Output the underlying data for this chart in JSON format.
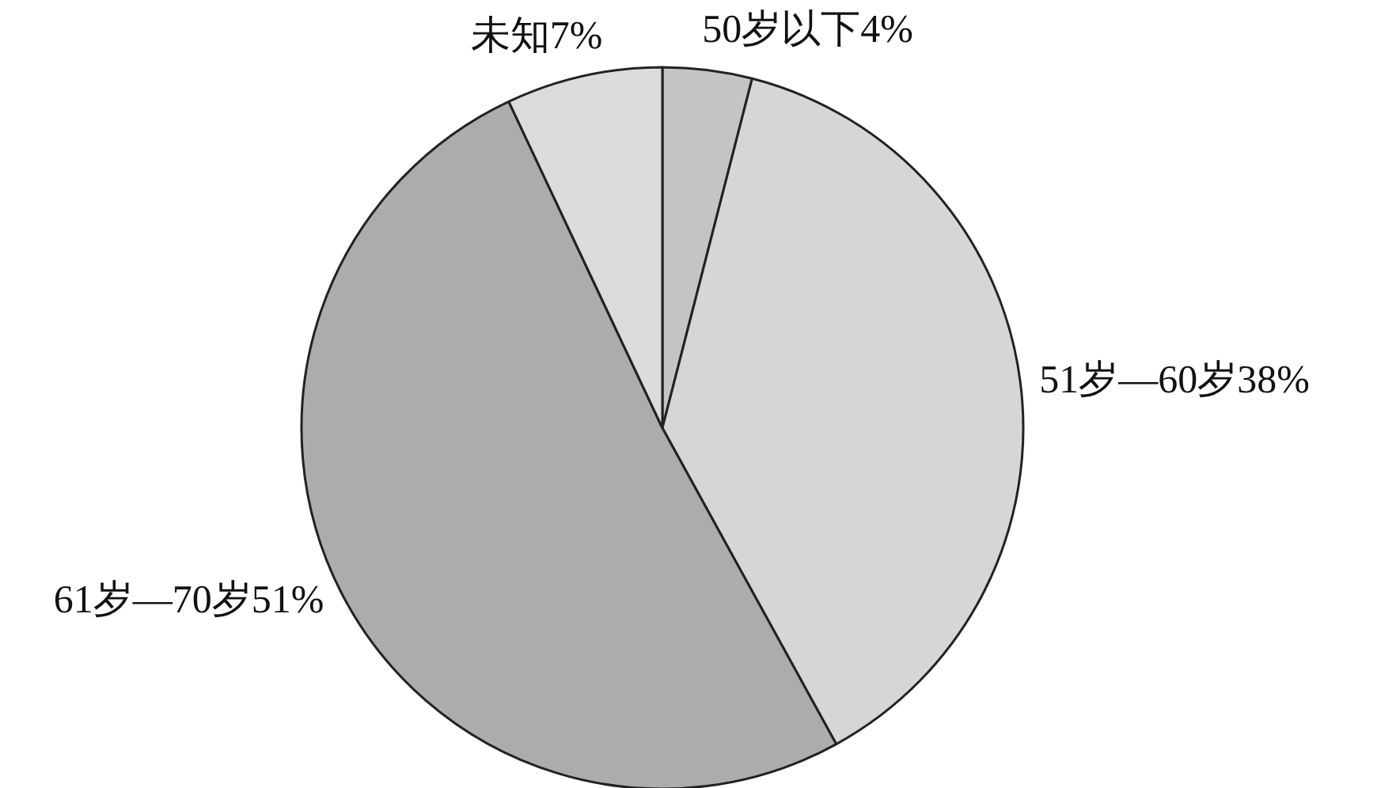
{
  "chart_data": {
    "type": "pie",
    "categories": [
      "50岁以下",
      "51岁—60岁",
      "61岁—70岁",
      "未知"
    ],
    "values": [
      4,
      38,
      51,
      7
    ],
    "colors": [
      "#c4c4c4",
      "#d6d6d6",
      "#acacac",
      "#dcdcdc"
    ],
    "value_labels": [
      "4%",
      "38%",
      "51%",
      "7%"
    ]
  }
}
